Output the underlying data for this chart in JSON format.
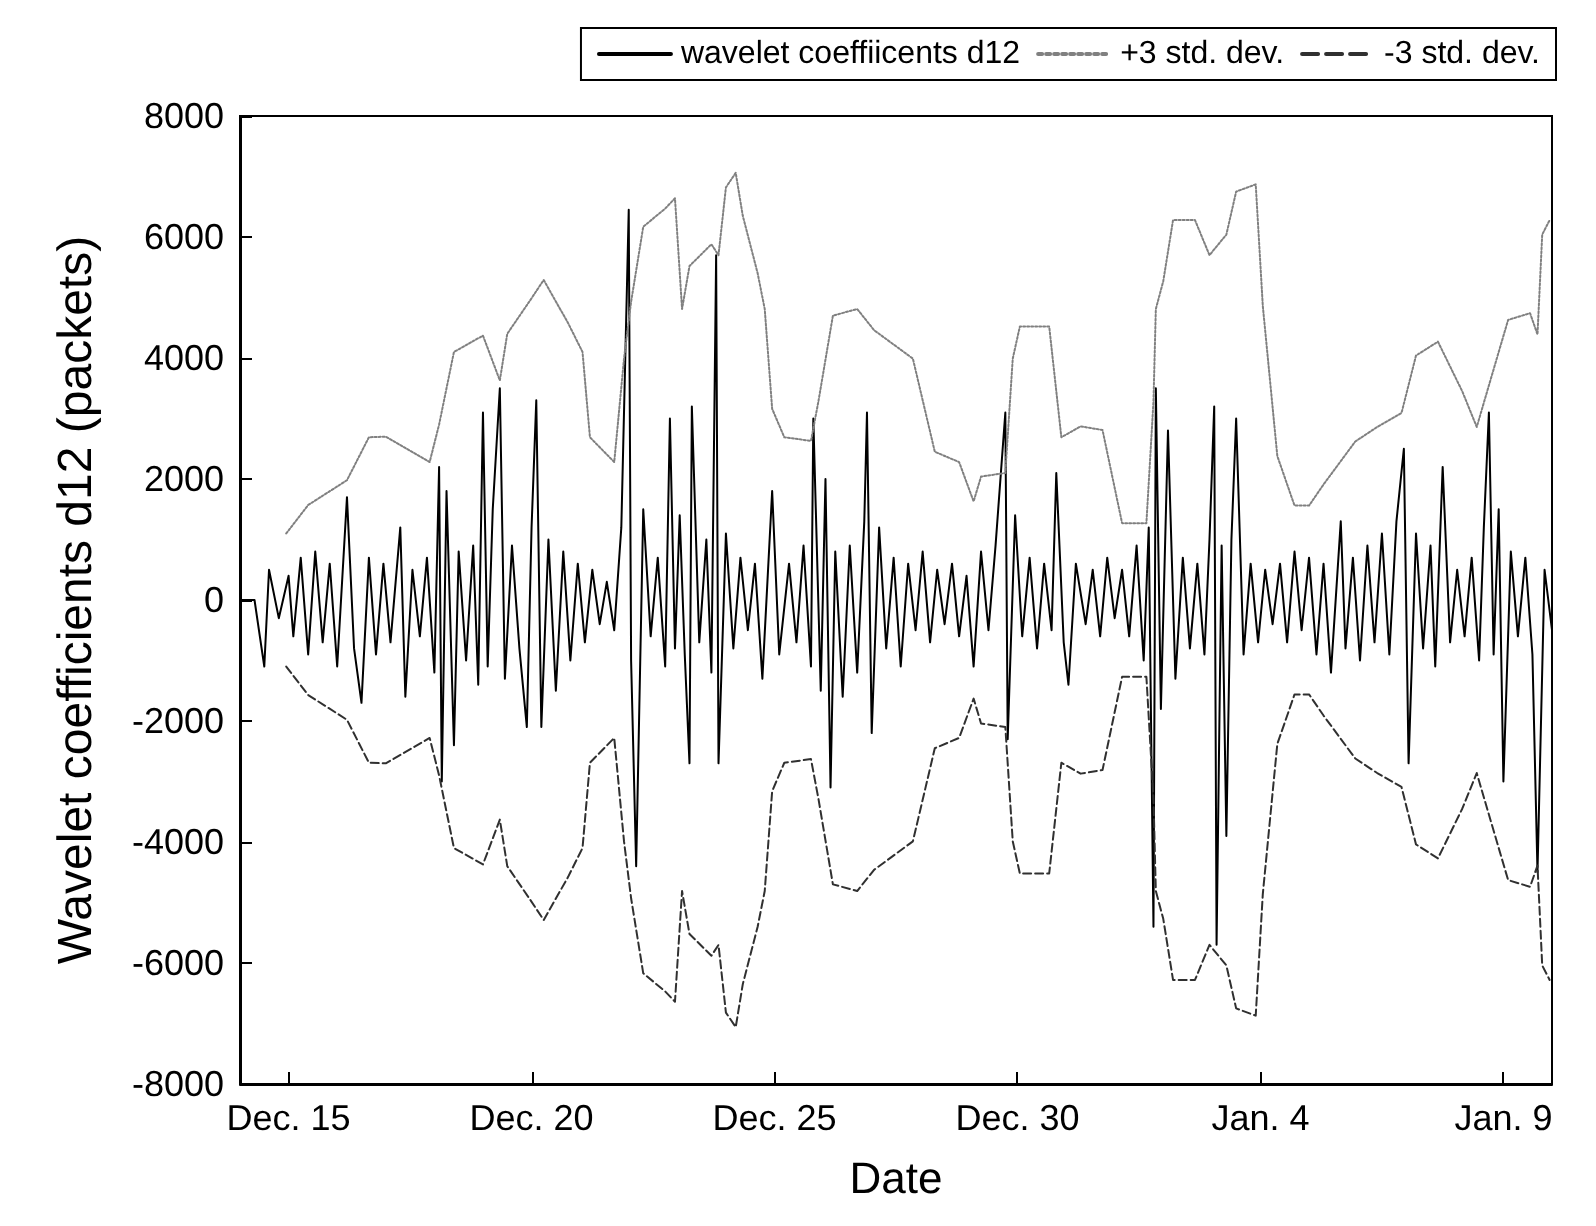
{
  "chart_data": {
    "type": "line",
    "xlabel": "Date",
    "ylabel": "Wavelet coefficients d12 (packets)",
    "xlim": [
      "2000-12-14",
      "2001-01-10"
    ],
    "xticks": [
      {
        "value": "2000-12-15",
        "label": "Dec. 15"
      },
      {
        "value": "2000-12-20",
        "label": "Dec. 20"
      },
      {
        "value": "2000-12-25",
        "label": "Dec. 25"
      },
      {
        "value": "2000-12-30",
        "label": "Dec. 30"
      },
      {
        "value": "2001-01-04",
        "label": "Jan. 4"
      },
      {
        "value": "2001-01-09",
        "label": "Jan. 9"
      }
    ],
    "ylim": [
      -8000,
      8000
    ],
    "yticks": [
      -8000,
      -6000,
      -4000,
      -2000,
      0,
      2000,
      4000,
      6000,
      8000
    ],
    "grid": false,
    "legend": "top right",
    "series": [
      {
        "name": "wavelet coeffiicents d12",
        "color": "#000000",
        "line_style": "solid",
        "x": [
          "2000-12-14T00:00",
          "2000-12-14T07:10",
          "2000-12-14T12:00",
          "2000-12-14T14:20",
          "2000-12-14T19:10",
          "2000-12-15T00:00",
          "2000-12-15T02:20",
          "2000-12-15T06:00",
          "2000-12-15T09:40",
          "2000-12-15T13:10",
          "2000-12-15T16:50",
          "2000-12-15T20:20",
          "2000-12-16T00:00",
          "2000-12-16T04:50",
          "2000-12-16T08:20",
          "2000-12-16T12:00",
          "2000-12-16T15:40",
          "2000-12-16T19:10",
          "2000-12-16T22:50",
          "2000-12-17T02:20",
          "2000-12-17T07:10",
          "2000-12-17T09:40",
          "2000-12-17T13:10",
          "2000-12-17T16:50",
          "2000-12-17T20:20",
          "2000-12-18T00:00",
          "2000-12-18T02:20",
          "2000-12-18T03:40",
          "2000-12-18T06:00",
          "2000-12-18T09:40",
          "2000-12-18T12:00",
          "2000-12-18T15:40",
          "2000-12-18T19:10",
          "2000-12-18T21:40",
          "2000-12-19T00:00",
          "2000-12-19T02:20",
          "2000-12-19T04:50",
          "2000-12-19T08:20",
          "2000-12-19T10:50",
          "2000-12-19T14:20",
          "2000-12-19T18:00",
          "2000-12-19T21:40",
          "2000-12-20T00:00",
          "2000-12-20T02:20",
          "2000-12-20T04:50",
          "2000-12-20T08:20",
          "2000-12-20T12:00",
          "2000-12-20T15:40",
          "2000-12-20T19:10",
          "2000-12-20T22:50",
          "2000-12-21T02:20",
          "2000-12-21T06:00",
          "2000-12-21T09:40",
          "2000-12-21T13:10",
          "2000-12-21T16:50",
          "2000-12-21T20:20",
          "2000-12-22T00:00",
          "2000-12-22T01:10",
          "2000-12-22T03:40",
          "2000-12-22T07:10",
          "2000-12-22T10:50",
          "2000-12-22T14:20",
          "2000-12-22T18:00",
          "2000-12-22T20:20",
          "2000-12-22T22:50",
          "2000-12-23T01:10",
          "2000-12-23T03:40",
          "2000-12-23T06:00",
          "2000-12-23T07:10",
          "2000-12-23T10:50",
          "2000-12-23T14:20",
          "2000-12-23T16:50",
          "2000-12-23T19:10",
          "2000-12-23T20:20",
          "2000-12-24T00:00",
          "2000-12-24T03:40",
          "2000-12-24T07:10",
          "2000-12-24T10:50",
          "2000-12-24T14:20",
          "2000-12-24T18:00",
          "2000-12-24T22:50",
          "2000-12-25T02:20",
          "2000-12-25T07:10",
          "2000-12-25T10:50",
          "2000-12-25T14:20",
          "2000-12-25T18:00",
          "2000-12-25T19:10",
          "2000-12-25T22:50",
          "2000-12-26T01:10",
          "2000-12-26T03:40",
          "2000-12-26T06:00",
          "2000-12-26T09:40",
          "2000-12-26T13:10",
          "2000-12-26T16:50",
          "2000-12-26T20:20",
          "2000-12-26T21:40",
          "2000-12-27T00:00",
          "2000-12-27T03:40",
          "2000-12-27T07:10",
          "2000-12-27T10:50",
          "2000-12-27T14:20",
          "2000-12-27T18:00",
          "2000-12-27T21:40",
          "2000-12-28T01:10",
          "2000-12-28T04:50",
          "2000-12-28T08:20",
          "2000-12-28T12:00",
          "2000-12-28T15:40",
          "2000-12-28T19:10",
          "2000-12-28T22:50",
          "2000-12-29T02:20",
          "2000-12-29T06:00",
          "2000-12-29T09:40",
          "2000-12-29T13:10",
          "2000-12-29T18:00",
          "2000-12-29T19:10",
          "2000-12-29T22:50",
          "2000-12-30T02:20",
          "2000-12-30T06:00",
          "2000-12-30T09:40",
          "2000-12-30T13:10",
          "2000-12-30T16:50",
          "2000-12-30T19:10",
          "2000-12-30T22:50",
          "2000-12-31T01:10",
          "2000-12-31T04:50",
          "2000-12-31T09:40",
          "2000-12-31T13:10",
          "2000-12-31T16:50",
          "2000-12-31T20:20",
          "2001-01-01T00:00",
          "2001-01-01T03:40",
          "2001-01-01T07:10",
          "2001-01-01T10:50",
          "2001-01-01T14:20",
          "2001-01-01T16:50",
          "2001-01-01T19:10",
          "2001-01-01T20:20",
          "2001-01-01T22:50",
          "2001-01-02T02:20",
          "2001-01-02T06:00",
          "2001-01-02T09:40",
          "2001-01-02T13:10",
          "2001-01-02T16:50",
          "2001-01-02T20:20",
          "2001-01-02T22:50",
          "2001-01-03T01:10",
          "2001-01-03T02:20",
          "2001-01-03T04:50",
          "2001-01-03T07:10",
          "2001-01-03T09:40",
          "2001-01-03T12:00",
          "2001-01-03T15:40",
          "2001-01-03T19:10",
          "2001-01-03T22:50",
          "2001-01-04T02:20",
          "2001-01-04T06:00",
          "2001-01-04T09:40",
          "2001-01-04T13:10",
          "2001-01-04T16:50",
          "2001-01-04T20:20",
          "2001-01-05T00:00",
          "2001-01-05T03:40",
          "2001-01-05T07:10",
          "2001-01-05T10:50",
          "2001-01-05T15:40",
          "2001-01-05T18:00",
          "2001-01-05T21:40",
          "2001-01-06T01:10",
          "2001-01-06T04:50",
          "2001-01-06T08:20",
          "2001-01-06T12:00",
          "2001-01-06T15:40",
          "2001-01-06T19:10",
          "2001-01-06T22:50",
          "2001-01-07T01:10",
          "2001-01-07T04:50",
          "2001-01-07T08:20",
          "2001-01-07T12:00",
          "2001-01-07T14:20",
          "2001-01-07T18:00",
          "2001-01-07T21:40",
          "2001-01-08T01:10",
          "2001-01-08T04:50",
          "2001-01-08T08:20",
          "2001-01-08T12:00",
          "2001-01-08T14:20",
          "2001-01-08T16:50",
          "2001-01-08T19:10",
          "2001-01-08T21:40",
          "2001-01-09T00:00",
          "2001-01-09T03:40",
          "2001-01-09T07:10",
          "2001-01-09T10:50",
          "2001-01-09T14:20",
          "2001-01-09T16:50",
          "2001-01-09T20:20",
          "2001-01-10T00:00"
        ],
        "values": [
          0,
          0,
          -1100,
          500,
          -300,
          400,
          -600,
          700,
          -900,
          800,
          -700,
          600,
          -1100,
          1700,
          -800,
          -1700,
          700,
          -900,
          600,
          -700,
          1200,
          -1600,
          500,
          -600,
          700,
          -1200,
          2200,
          -3000,
          1800,
          -2400,
          800,
          -1000,
          900,
          -1400,
          3100,
          -1100,
          1500,
          3500,
          -1300,
          900,
          -800,
          -2100,
          1200,
          3300,
          -2100,
          1000,
          -1500,
          800,
          -1000,
          600,
          -700,
          500,
          -400,
          300,
          -500,
          1200,
          6450,
          -1000,
          -4400,
          1500,
          -600,
          700,
          -1100,
          3000,
          -800,
          1400,
          -900,
          -2700,
          3200,
          -700,
          1000,
          -1200,
          5700,
          -2700,
          1100,
          -800,
          700,
          -500,
          600,
          -1300,
          1800,
          -900,
          600,
          -700,
          900,
          -1100,
          3000,
          -1500,
          2000,
          -3100,
          800,
          -1600,
          900,
          -1200,
          1300,
          3100,
          -2200,
          1200,
          -800,
          700,
          -1100,
          600,
          -500,
          800,
          -700,
          500,
          -400,
          600,
          -600,
          400,
          -1100,
          800,
          -500,
          900,
          3100,
          -2300,
          1400,
          -600,
          700,
          -800,
          600,
          -500,
          2100,
          -700,
          -1400,
          600,
          -400,
          500,
          -600,
          700,
          -300,
          500,
          -600,
          900,
          -1000,
          1200,
          -5400,
          3500,
          -1800,
          2800,
          -1300,
          700,
          -800,
          600,
          -900,
          1000,
          3200,
          -5700,
          900,
          -3900,
          1000,
          3000,
          -900,
          600,
          -700,
          500,
          -400,
          600,
          -700,
          800,
          -500,
          700,
          -900,
          600,
          -1200,
          1300,
          -800,
          700,
          -1000,
          900,
          -700,
          1100,
          -900,
          1300,
          2500,
          -2700,
          1100,
          -800,
          900,
          -1100,
          2200,
          -700,
          500,
          -600,
          700,
          -1000,
          1200,
          3100,
          -900,
          1500,
          -3000,
          800,
          -600,
          700,
          -900,
          -4500,
          500,
          -500
        ]
      },
      {
        "name": "+3 std. dev.",
        "color": "#808080",
        "line_style": "dotted",
        "x": [
          "2000-12-14T22:50",
          "2000-12-15T09:40",
          "2000-12-16T04:50",
          "2000-12-16T15:40",
          "2000-12-17T00:00",
          "2000-12-17T21:40",
          "2000-12-18T02:20",
          "2000-12-18T09:40",
          "2000-12-19T00:00",
          "2000-12-19T08:20",
          "2000-12-19T12:00",
          "2000-12-19T22:50",
          "2000-12-20T06:00",
          "2000-12-20T18:00",
          "2000-12-21T01:10",
          "2000-12-21T04:50",
          "2000-12-21T16:50",
          "2000-12-21T21:40",
          "2000-12-22T01:10",
          "2000-12-22T07:10",
          "2000-12-22T18:00",
          "2000-12-22T22:50",
          "2000-12-23T02:20",
          "2000-12-23T06:00",
          "2000-12-23T16:50",
          "2000-12-23T20:20",
          "2000-12-24T00:00",
          "2000-12-24T04:50",
          "2000-12-24T08:20",
          "2000-12-24T15:40",
          "2000-12-24T19:10",
          "2000-12-24T22:50",
          "2000-12-25T04:50",
          "2000-12-25T18:00",
          "2000-12-25T21:40",
          "2000-12-26T04:50",
          "2000-12-26T16:50",
          "2000-12-27T01:10",
          "2000-12-27T20:20",
          "2000-12-28T07:10",
          "2000-12-28T19:10",
          "2000-12-29T02:20",
          "2000-12-29T06:00",
          "2000-12-29T18:00",
          "2000-12-29T21:40",
          "2000-12-30T01:10",
          "2000-12-30T15:40",
          "2000-12-30T21:40",
          "2000-12-31T07:10",
          "2000-12-31T18:00",
          "2001-01-01T03:40",
          "2001-01-01T15:40",
          "2001-01-01T19:10",
          "2001-01-01T20:20",
          "2001-01-02T00:00",
          "2001-01-02T04:50",
          "2001-01-02T15:40",
          "2001-01-02T22:50",
          "2001-01-03T07:10",
          "2001-01-03T12:00",
          "2001-01-03T21:40",
          "2001-01-04T01:10",
          "2001-01-04T08:20",
          "2001-01-04T16:50",
          "2001-01-05T00:00",
          "2001-01-05T07:10",
          "2001-01-05T22:50",
          "2001-01-06T09:40",
          "2001-01-06T21:40",
          "2001-01-07T04:50",
          "2001-01-07T15:40",
          "2001-01-08T03:40",
          "2001-01-08T10:50",
          "2001-01-08T18:00",
          "2001-01-09T02:20",
          "2001-01-09T13:10",
          "2001-01-09T16:50",
          "2001-01-09T19:10",
          "2001-01-09T22:50"
        ],
        "values": [
          1100,
          1570,
          1980,
          2690,
          2700,
          2280,
          2900,
          4100,
          4370,
          3630,
          4400,
          4930,
          5290,
          4580,
          4100,
          2690,
          2280,
          3990,
          4930,
          6170,
          6470,
          6640,
          4810,
          5520,
          5880,
          5700,
          6820,
          7060,
          6350,
          5400,
          4810,
          3160,
          2690,
          2630,
          3280,
          4700,
          4810,
          4460,
          3990,
          2450,
          2280,
          1630,
          2040,
          2100,
          3990,
          4520,
          4520,
          2690,
          2870,
          2810,
          1270,
          1270,
          3280,
          4810,
          5270,
          6280,
          6280,
          5700,
          6040,
          6750,
          6870,
          4860,
          2380,
          1560,
          1560,
          1910,
          2620,
          2860,
          3090,
          4040,
          4270,
          3450,
          2860,
          3680,
          4630,
          4740,
          4390,
          6040,
          6280
        ]
      },
      {
        "name": "-3 std. dev.",
        "color": "#303030",
        "line_style": "dashed",
        "x": [
          "2000-12-14T22:50",
          "2000-12-15T09:40",
          "2000-12-16T04:50",
          "2000-12-16T15:40",
          "2000-12-17T00:00",
          "2000-12-17T21:40",
          "2000-12-18T02:20",
          "2000-12-18T09:40",
          "2000-12-19T00:00",
          "2000-12-19T08:20",
          "2000-12-19T12:00",
          "2000-12-19T22:50",
          "2000-12-20T06:00",
          "2000-12-20T18:00",
          "2000-12-21T01:10",
          "2000-12-21T04:50",
          "2000-12-21T16:50",
          "2000-12-21T21:40",
          "2000-12-22T01:10",
          "2000-12-22T07:10",
          "2000-12-22T18:00",
          "2000-12-22T22:50",
          "2000-12-23T02:20",
          "2000-12-23T06:00",
          "2000-12-23T16:50",
          "2000-12-23T20:20",
          "2000-12-24T00:00",
          "2000-12-24T04:50",
          "2000-12-24T08:20",
          "2000-12-24T15:40",
          "2000-12-24T19:10",
          "2000-12-24T22:50",
          "2000-12-25T04:50",
          "2000-12-25T18:00",
          "2000-12-25T21:40",
          "2000-12-26T04:50",
          "2000-12-26T16:50",
          "2000-12-27T01:10",
          "2000-12-27T20:20",
          "2000-12-28T07:10",
          "2000-12-28T19:10",
          "2000-12-29T02:20",
          "2000-12-29T06:00",
          "2000-12-29T18:00",
          "2000-12-29T21:40",
          "2000-12-30T01:10",
          "2000-12-30T15:40",
          "2000-12-30T21:40",
          "2000-12-31T07:10",
          "2000-12-31T18:00",
          "2001-01-01T03:40",
          "2001-01-01T15:40",
          "2001-01-01T19:10",
          "2001-01-01T20:20",
          "2001-01-02T00:00",
          "2001-01-02T04:50",
          "2001-01-02T15:40",
          "2001-01-02T22:50",
          "2001-01-03T07:10",
          "2001-01-03T12:00",
          "2001-01-03T21:40",
          "2001-01-04T01:10",
          "2001-01-04T08:20",
          "2001-01-04T16:50",
          "2001-01-05T00:00",
          "2001-01-05T07:10",
          "2001-01-05T22:50",
          "2001-01-06T09:40",
          "2001-01-06T21:40",
          "2001-01-07T04:50",
          "2001-01-07T15:40",
          "2001-01-08T03:40",
          "2001-01-08T10:50",
          "2001-01-08T18:00",
          "2001-01-09T02:20",
          "2001-01-09T13:10",
          "2001-01-09T16:50",
          "2001-01-09T19:10",
          "2001-01-09T22:50"
        ],
        "values": [
          -1100,
          -1570,
          -1980,
          -2690,
          -2700,
          -2280,
          -2900,
          -4100,
          -4370,
          -3630,
          -4400,
          -4930,
          -5290,
          -4580,
          -4100,
          -2690,
          -2280,
          -3990,
          -4930,
          -6170,
          -6470,
          -6640,
          -4810,
          -5520,
          -5880,
          -5700,
          -6820,
          -7060,
          -6350,
          -5400,
          -4810,
          -3160,
          -2690,
          -2630,
          -3280,
          -4700,
          -4810,
          -4460,
          -3990,
          -2450,
          -2280,
          -1630,
          -2040,
          -2100,
          -3990,
          -4520,
          -4520,
          -2690,
          -2870,
          -2810,
          -1270,
          -1270,
          -3280,
          -4810,
          -5270,
          -6280,
          -6280,
          -5700,
          -6040,
          -6750,
          -6870,
          -4860,
          -2380,
          -1560,
          -1560,
          -1910,
          -2620,
          -2860,
          -3090,
          -4040,
          -4270,
          -3450,
          -2860,
          -3680,
          -4630,
          -4740,
          -4390,
          -6040,
          -6280
        ]
      }
    ]
  }
}
